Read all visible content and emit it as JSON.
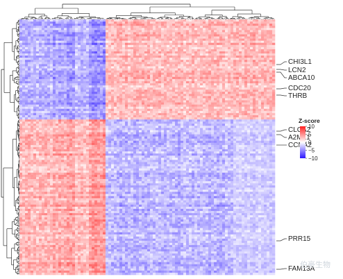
{
  "chart_data": {
    "type": "heatmap",
    "legend": {
      "title": "Z-score",
      "ticks": [
        10,
        5,
        0,
        -5,
        -10
      ],
      "colors": {
        "high": "#ff2020",
        "mid": "#ffffff",
        "low": "#2a14ff"
      },
      "placement": "right"
    },
    "row_labels": [
      "CHI3L1",
      "LCN2",
      "ABCA10",
      "CDC20",
      "THRB",
      "CLCA2",
      "A2ML1",
      "CCNA2",
      "PRR15",
      "FAM13A"
    ],
    "clusters": {
      "column_split": 0.34,
      "row_split": 0.395,
      "quadrant_sign": {
        "top_left": -1,
        "top_right": 1,
        "bottom_left": 1,
        "bottom_right": -1
      }
    },
    "dendrograms": {
      "top": true,
      "left": true
    }
  },
  "watermark": {
    "text": "伯豪生物"
  }
}
